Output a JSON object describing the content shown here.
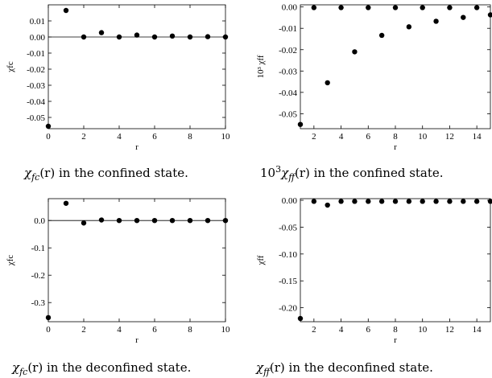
{
  "chart_data": [
    {
      "type": "scatter",
      "caption_parts": [
        "χ",
        "fc",
        "(r) in the confined state."
      ],
      "xlabel": "r",
      "ylabel": "χfc",
      "xlim": [
        0,
        10
      ],
      "ylim": [
        -0.057,
        0.02
      ],
      "xticks": [
        0,
        2,
        4,
        6,
        8,
        10
      ],
      "xtick_labels": [
        "0",
        "2",
        "4",
        "6",
        "8",
        "10"
      ],
      "yticks": [
        0.01,
        0.0,
        -0.01,
        -0.02,
        -0.03,
        -0.04,
        -0.05
      ],
      "ytick_labels": [
        "0.01",
        "0.00",
        "-0.01",
        "-0.02",
        "-0.03",
        "-0.04",
        "-0.05"
      ],
      "zero_line": true,
      "x": [
        0,
        1,
        2,
        3,
        4,
        5,
        6,
        7,
        8,
        9,
        10
      ],
      "y": [
        -0.0555,
        0.0165,
        0.0,
        0.0027,
        0.0,
        0.0012,
        0.0,
        0.0006,
        0.0,
        0.0002,
        0.0
      ]
    },
    {
      "type": "scatter",
      "caption_parts": [
        "10",
        "3",
        "χ",
        "ff",
        "(r) in the confined state."
      ],
      "xlabel": "r",
      "ylabel": "10³ χff",
      "xlim": [
        1,
        15
      ],
      "ylim": [
        -0.057,
        0.001
      ],
      "xticks": [
        2,
        4,
        6,
        8,
        10,
        12,
        14
      ],
      "xtick_labels": [
        "2",
        "4",
        "6",
        "8",
        "10",
        "12",
        "14"
      ],
      "yticks": [
        0.0,
        -0.01,
        -0.02,
        -0.03,
        -0.04,
        -0.05
      ],
      "ytick_labels": [
        "0.00",
        "-0.01",
        "-0.02",
        "-0.03",
        "-0.04",
        "-0.05"
      ],
      "zero_line": false,
      "x": [
        1,
        2,
        3,
        4,
        5,
        6,
        7,
        8,
        9,
        10,
        11,
        12,
        13,
        14,
        15
      ],
      "y": [
        -0.055,
        -0.0003,
        -0.0355,
        -0.0003,
        -0.021,
        -0.0003,
        -0.0133,
        -0.0003,
        -0.0093,
        -0.0003,
        -0.0067,
        -0.0003,
        -0.0049,
        -0.0003,
        -0.0037
      ]
    },
    {
      "type": "scatter",
      "caption_parts": [
        "χ",
        "fc",
        "(r) in the deconfined state."
      ],
      "xlabel": "r",
      "ylabel": "χfc",
      "xlim": [
        0,
        10
      ],
      "ylim": [
        -0.37,
        0.08
      ],
      "xticks": [
        0,
        2,
        4,
        6,
        8,
        10
      ],
      "xtick_labels": [
        "0",
        "2",
        "4",
        "6",
        "8",
        "10"
      ],
      "yticks": [
        0.0,
        -0.1,
        -0.2,
        -0.3
      ],
      "ytick_labels": [
        "0.0",
        "-0.1",
        "-0.2",
        "-0.3"
      ],
      "zero_line": true,
      "x": [
        0,
        1,
        2,
        3,
        4,
        5,
        6,
        7,
        8,
        9,
        10
      ],
      "y": [
        -0.355,
        0.063,
        -0.009,
        0.002,
        0.0,
        0.0,
        0.0,
        0.0,
        0.0,
        0.0,
        0.0
      ]
    },
    {
      "type": "scatter",
      "caption_parts": [
        "χ",
        "ff",
        "(r) in the deconfined state."
      ],
      "xlabel": "r",
      "ylabel": "χff",
      "xlim": [
        1,
        15
      ],
      "ylim": [
        -0.226,
        0.003
      ],
      "xticks": [
        2,
        4,
        6,
        8,
        10,
        12,
        14
      ],
      "xtick_labels": [
        "2",
        "4",
        "6",
        "8",
        "10",
        "12",
        "14"
      ],
      "yticks": [
        0.0,
        -0.05,
        -0.1,
        -0.15,
        -0.2
      ],
      "ytick_labels": [
        "0.00",
        "-0.05",
        "-0.10",
        "-0.15",
        "-0.20"
      ],
      "zero_line": false,
      "x": [
        1,
        2,
        3,
        4,
        5,
        6,
        7,
        8,
        9,
        10,
        11,
        12,
        13,
        14,
        15
      ],
      "y": [
        -0.22,
        -0.002,
        -0.009,
        -0.002,
        -0.002,
        -0.002,
        -0.002,
        -0.002,
        -0.002,
        -0.002,
        -0.002,
        -0.002,
        -0.002,
        -0.002,
        -0.002
      ]
    }
  ]
}
